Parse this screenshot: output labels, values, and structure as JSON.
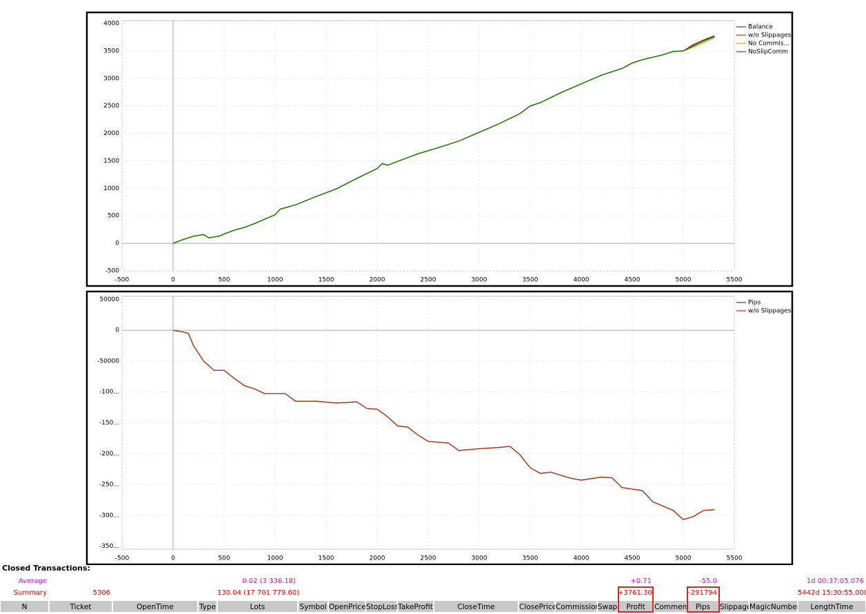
{
  "chart_data": [
    {
      "type": "line",
      "x": [
        0,
        100,
        200,
        300,
        350,
        450,
        500,
        600,
        700,
        800,
        1000,
        1050,
        1200,
        1400,
        1600,
        1800,
        2000,
        2050,
        2100,
        2300,
        2400,
        2600,
        2800,
        3000,
        3200,
        3400,
        3500,
        3600,
        3800,
        4000,
        4200,
        4400,
        4500,
        4600,
        4800,
        4900,
        5000,
        5100,
        5200,
        5306
      ],
      "series": [
        {
          "name": "Balance",
          "color": "#1f3fa0",
          "values": [
            0,
            70,
            130,
            160,
            100,
            130,
            170,
            240,
            290,
            360,
            520,
            620,
            700,
            850,
            990,
            1180,
            1360,
            1450,
            1420,
            1560,
            1630,
            1740,
            1860,
            2020,
            2180,
            2360,
            2500,
            2560,
            2740,
            2900,
            3060,
            3180,
            3280,
            3340,
            3430,
            3490,
            3500,
            3600,
            3680,
            3760
          ]
        },
        {
          "name": "w/o Slippages",
          "color": "#c03000",
          "values": [
            0,
            70,
            130,
            160,
            100,
            130,
            170,
            240,
            290,
            360,
            520,
            620,
            700,
            850,
            990,
            1180,
            1360,
            1450,
            1420,
            1560,
            1630,
            1740,
            1860,
            2020,
            2180,
            2360,
            2500,
            2560,
            2740,
            2900,
            3060,
            3180,
            3280,
            3340,
            3430,
            3490,
            3500,
            3620,
            3700,
            3775
          ]
        },
        {
          "name": "No Commis...",
          "color": "#f0a000",
          "values": [
            0,
            70,
            130,
            160,
            100,
            130,
            170,
            240,
            290,
            360,
            520,
            620,
            700,
            850,
            990,
            1180,
            1360,
            1450,
            1420,
            1560,
            1630,
            1740,
            1860,
            2020,
            2180,
            2360,
            2500,
            2560,
            2740,
            2900,
            3060,
            3180,
            3280,
            3340,
            3430,
            3490,
            3500,
            3570,
            3650,
            3740
          ]
        },
        {
          "name": "NoSlipComm",
          "color": "#008000",
          "values": [
            0,
            70,
            130,
            160,
            100,
            130,
            170,
            240,
            290,
            360,
            520,
            620,
            700,
            850,
            990,
            1180,
            1360,
            1450,
            1420,
            1560,
            1630,
            1740,
            1860,
            2020,
            2180,
            2360,
            2500,
            2560,
            2740,
            2900,
            3060,
            3180,
            3280,
            3340,
            3430,
            3490,
            3500,
            3590,
            3680,
            3770
          ]
        }
      ],
      "xlim": [
        -500,
        5500
      ],
      "xticks": [
        -500,
        0,
        500,
        1000,
        1500,
        2000,
        2500,
        3000,
        3500,
        4000,
        4500,
        5000,
        5500
      ],
      "ylim": [
        -500,
        4050
      ],
      "yticks": [
        -500,
        0,
        500,
        1000,
        1500,
        2000,
        2500,
        3000,
        3500,
        4000
      ],
      "grid": true,
      "legend": "top-right"
    },
    {
      "type": "line",
      "x": [
        0,
        100,
        150,
        200,
        300,
        400,
        500,
        600,
        700,
        800,
        900,
        1100,
        1200,
        1400,
        1600,
        1800,
        1900,
        2000,
        2100,
        2200,
        2300,
        2400,
        2500,
        2700,
        2800,
        3000,
        3200,
        3300,
        3400,
        3500,
        3600,
        3700,
        3900,
        4000,
        4200,
        4300,
        4400,
        4600,
        4700,
        4900,
        5000,
        5100,
        5200,
        5306
      ],
      "series": [
        {
          "name": "Pips",
          "color": "#1f3fa0",
          "values": [
            0,
            -3000,
            -5000,
            -25000,
            -50000,
            -65000,
            -65000,
            -78000,
            -90000,
            -95000,
            -103000,
            -103000,
            -115000,
            -115000,
            -118000,
            -116000,
            -127000,
            -128000,
            -140000,
            -155000,
            -157000,
            -170000,
            -180000,
            -183000,
            -195000,
            -192000,
            -190000,
            -188000,
            -202000,
            -223000,
            -232000,
            -230000,
            -240000,
            -243000,
            -238000,
            -239000,
            -255000,
            -260000,
            -278000,
            -292000,
            -307000,
            -302000,
            -292000,
            -291000
          ]
        },
        {
          "name": "w/o Slippages",
          "color": "#c03000",
          "values": [
            0,
            -3000,
            -5000,
            -25000,
            -50000,
            -65000,
            -65000,
            -78000,
            -90000,
            -95000,
            -103000,
            -103000,
            -115000,
            -115000,
            -118000,
            -116000,
            -127000,
            -128000,
            -140000,
            -155000,
            -157000,
            -170000,
            -180000,
            -183000,
            -195000,
            -192000,
            -190000,
            -188000,
            -202000,
            -223000,
            -232000,
            -230000,
            -240000,
            -243000,
            -238000,
            -239000,
            -255000,
            -260000,
            -278000,
            -292000,
            -307000,
            -302000,
            -292000,
            -291000
          ]
        }
      ],
      "xlim": [
        -500,
        5500
      ],
      "xticks": [
        -500,
        0,
        500,
        1000,
        1500,
        2000,
        2500,
        3000,
        3500,
        4000,
        4500,
        5000,
        5500
      ],
      "ylim": [
        -355000,
        55000
      ],
      "yticks": [
        50000,
        0,
        -50000,
        {
          "value": -100000,
          "label": "-100..."
        },
        {
          "value": -150000,
          "label": "-150..."
        },
        {
          "value": -200000,
          "label": "-200..."
        },
        {
          "value": -250000,
          "label": "-250..."
        },
        {
          "value": -300000,
          "label": "-300..."
        },
        {
          "value": -350000,
          "label": "-350..."
        }
      ],
      "grid": true,
      "legend": "top-right"
    }
  ],
  "table": {
    "title": "Closed Transactions:",
    "columns": [
      "N",
      "Ticket",
      "OpenTime",
      "Type",
      "Lots",
      "Symbol",
      "OpenPrice",
      "StopLoss",
      "TakeProfit",
      "CloseTime",
      "ClosePrice",
      "Commission",
      "Swap",
      "Profit",
      "Comment",
      "Pips",
      "Slippage",
      "MagicNumber",
      "LengthTime"
    ],
    "rows": [
      [
        "Average",
        null,
        null,
        null,
        "0.02 (3 336.18)",
        null,
        null,
        null,
        null,
        null,
        null,
        null,
        null,
        "+0.71",
        null,
        "-55.0",
        null,
        null,
        "1d 00:37:05.076"
      ],
      [
        "Summary",
        "5306",
        null,
        null,
        "130.04 (17 701 779.60)",
        null,
        null,
        null,
        null,
        null,
        null,
        null,
        null,
        "+3761.30",
        null,
        "-291794",
        null,
        null,
        "5442d 15:30:55.000"
      ]
    ]
  }
}
